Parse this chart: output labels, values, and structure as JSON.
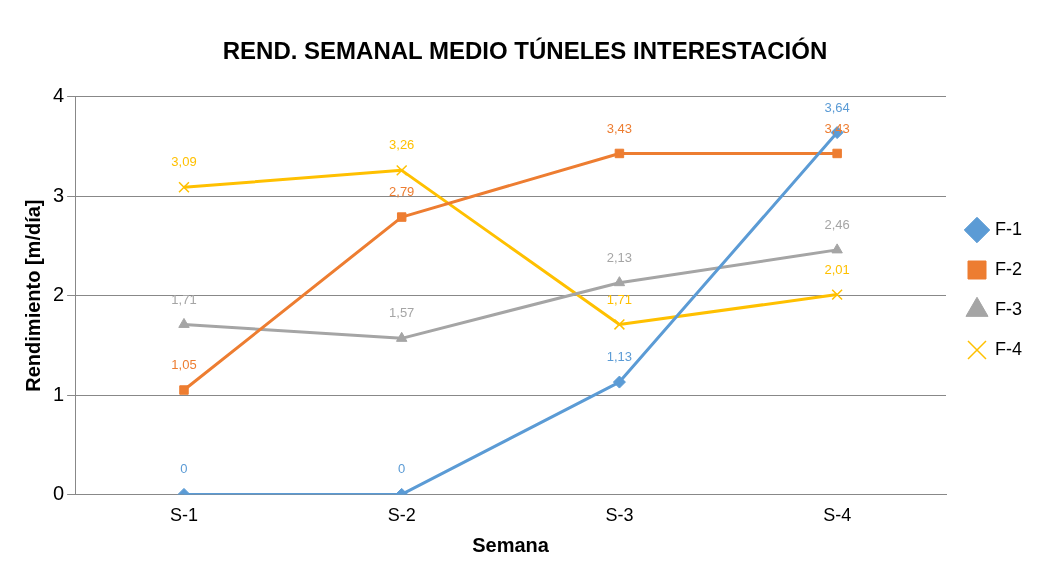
{
  "chart_data": {
    "type": "line",
    "title": "REND. SEMANAL MEDIO TÚNELES INTERESTACIÓN",
    "xlabel": "Semana",
    "ylabel": "Rendimiento [m/día]",
    "categories": [
      "S-1",
      "S-2",
      "S-3",
      "S-4"
    ],
    "series": [
      {
        "name": "F-1",
        "color": "#5b9bd5",
        "marker": "diamond",
        "values": [
          0,
          0,
          1.13,
          3.64
        ],
        "value_labels": [
          "0",
          "0",
          "1,13",
          "3,64"
        ]
      },
      {
        "name": "F-2",
        "color": "#ed7d31",
        "marker": "square",
        "values": [
          1.05,
          2.79,
          3.43,
          3.43
        ],
        "value_labels": [
          "1,05",
          "2,79",
          "3,43",
          "3,43"
        ]
      },
      {
        "name": "F-3",
        "color": "#a5a5a5",
        "marker": "triangle",
        "values": [
          1.71,
          1.57,
          2.13,
          2.46
        ],
        "value_labels": [
          "1,71",
          "1,57",
          "2,13",
          "2,46"
        ]
      },
      {
        "name": "F-4",
        "color": "#ffc000",
        "marker": "cross",
        "values": [
          3.09,
          3.26,
          1.71,
          2.01
        ],
        "value_labels": [
          "3,09",
          "3,26",
          "1,71",
          "2,01"
        ]
      }
    ],
    "ylim": [
      0,
      4
    ],
    "yticks": [
      0,
      1,
      2,
      3,
      4
    ],
    "grid": "y",
    "legend": "right",
    "line_style": "solid"
  }
}
